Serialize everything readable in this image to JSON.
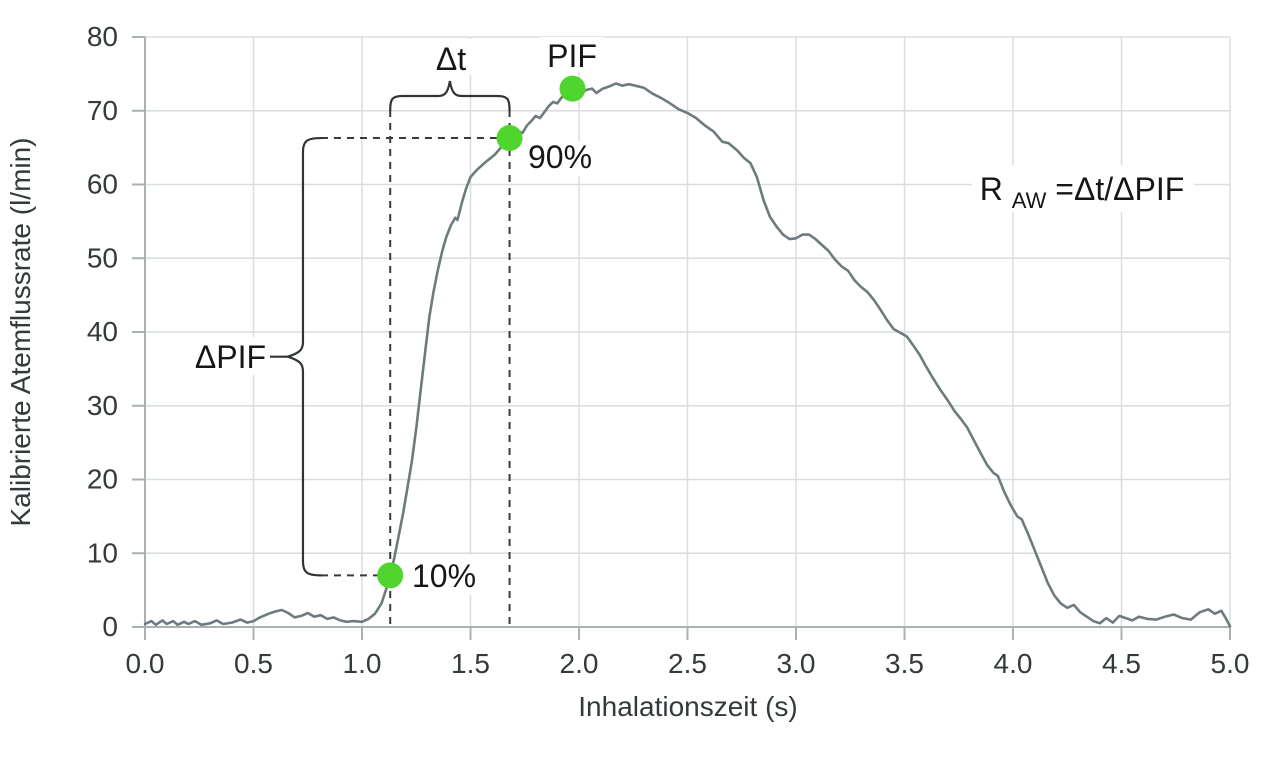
{
  "chart_data": {
    "type": "line",
    "title": "",
    "xlabel": "Inhalationszeit (s)",
    "ylabel": "Kalibrierte Atemflussrate (l/min)",
    "xlim": [
      0,
      5
    ],
    "ylim": [
      0,
      80
    ],
    "grid": true,
    "xticks": [
      "0.0",
      "0.5",
      "1.0",
      "1.5",
      "2.0",
      "2.5",
      "3.0",
      "3.5",
      "4.0",
      "4.5",
      "5.0"
    ],
    "yticks": [
      "0",
      "10",
      "20",
      "30",
      "40",
      "50",
      "60",
      "70",
      "80"
    ],
    "series": [
      {
        "name": "Atemflussrate",
        "points": [
          [
            0.0,
            0.4
          ],
          [
            0.03,
            0.8
          ],
          [
            0.05,
            0.3
          ],
          [
            0.08,
            0.9
          ],
          [
            0.1,
            0.4
          ],
          [
            0.13,
            0.8
          ],
          [
            0.15,
            0.3
          ],
          [
            0.18,
            0.7
          ],
          [
            0.2,
            0.4
          ],
          [
            0.23,
            0.8
          ],
          [
            0.26,
            0.3
          ],
          [
            0.3,
            0.5
          ],
          [
            0.33,
            0.9
          ],
          [
            0.36,
            0.4
          ],
          [
            0.4,
            0.6
          ],
          [
            0.44,
            1.0
          ],
          [
            0.47,
            0.6
          ],
          [
            0.5,
            0.8
          ],
          [
            0.53,
            1.3
          ],
          [
            0.57,
            1.8
          ],
          [
            0.6,
            2.1
          ],
          [
            0.63,
            2.3
          ],
          [
            0.66,
            1.9
          ],
          [
            0.69,
            1.3
          ],
          [
            0.72,
            1.5
          ],
          [
            0.75,
            1.9
          ],
          [
            0.78,
            1.4
          ],
          [
            0.81,
            1.6
          ],
          [
            0.84,
            1.1
          ],
          [
            0.87,
            1.3
          ],
          [
            0.9,
            0.9
          ],
          [
            0.93,
            0.7
          ],
          [
            0.96,
            0.8
          ],
          [
            1.0,
            0.7
          ],
          [
            1.03,
            1.1
          ],
          [
            1.06,
            1.8
          ],
          [
            1.09,
            3.2
          ],
          [
            1.11,
            5.0
          ],
          [
            1.13,
            7.0
          ],
          [
            1.15,
            9.5
          ],
          [
            1.17,
            12.5
          ],
          [
            1.19,
            15.5
          ],
          [
            1.21,
            19.0
          ],
          [
            1.23,
            22.5
          ],
          [
            1.25,
            27.0
          ],
          [
            1.27,
            32.0
          ],
          [
            1.29,
            37.0
          ],
          [
            1.31,
            42.0
          ],
          [
            1.33,
            45.5
          ],
          [
            1.35,
            48.5
          ],
          [
            1.37,
            51.0
          ],
          [
            1.39,
            53.0
          ],
          [
            1.41,
            54.5
          ],
          [
            1.43,
            55.5
          ],
          [
            1.44,
            55.2
          ],
          [
            1.46,
            57.5
          ],
          [
            1.48,
            59.5
          ],
          [
            1.5,
            61.0
          ],
          [
            1.53,
            62.0
          ],
          [
            1.56,
            62.8
          ],
          [
            1.58,
            63.3
          ],
          [
            1.61,
            64.0
          ],
          [
            1.64,
            65.0
          ],
          [
            1.66,
            65.6
          ],
          [
            1.68,
            66.3
          ],
          [
            1.7,
            66.8
          ],
          [
            1.72,
            67.2
          ],
          [
            1.74,
            67.0
          ],
          [
            1.76,
            68.0
          ],
          [
            1.78,
            68.6
          ],
          [
            1.8,
            69.3
          ],
          [
            1.82,
            69.0
          ],
          [
            1.84,
            69.8
          ],
          [
            1.86,
            70.6
          ],
          [
            1.88,
            71.2
          ],
          [
            1.9,
            71.0
          ],
          [
            1.92,
            71.8
          ],
          [
            1.94,
            72.3
          ],
          [
            1.97,
            73.0
          ],
          [
            1.99,
            72.5
          ],
          [
            2.01,
            72.3
          ],
          [
            2.03,
            72.8
          ],
          [
            2.06,
            73.0
          ],
          [
            2.08,
            72.4
          ],
          [
            2.11,
            73.0
          ],
          [
            2.14,
            73.3
          ],
          [
            2.17,
            73.7
          ],
          [
            2.2,
            73.4
          ],
          [
            2.23,
            73.6
          ],
          [
            2.26,
            73.4
          ],
          [
            2.3,
            73.1
          ],
          [
            2.34,
            72.3
          ],
          [
            2.38,
            71.7
          ],
          [
            2.42,
            71.0
          ],
          [
            2.46,
            70.2
          ],
          [
            2.5,
            69.7
          ],
          [
            2.54,
            69.0
          ],
          [
            2.58,
            68.0
          ],
          [
            2.62,
            67.2
          ],
          [
            2.66,
            65.8
          ],
          [
            2.69,
            65.6
          ],
          [
            2.73,
            64.6
          ],
          [
            2.76,
            63.6
          ],
          [
            2.79,
            62.9
          ],
          [
            2.82,
            61.0
          ],
          [
            2.85,
            57.9
          ],
          [
            2.88,
            55.6
          ],
          [
            2.91,
            54.3
          ],
          [
            2.94,
            53.2
          ],
          [
            2.97,
            52.6
          ],
          [
            3.0,
            52.7
          ],
          [
            3.03,
            53.2
          ],
          [
            3.06,
            53.2
          ],
          [
            3.09,
            52.6
          ],
          [
            3.12,
            51.8
          ],
          [
            3.15,
            51.0
          ],
          [
            3.18,
            49.8
          ],
          [
            3.21,
            48.9
          ],
          [
            3.24,
            48.3
          ],
          [
            3.27,
            47.0
          ],
          [
            3.3,
            46.1
          ],
          [
            3.33,
            45.4
          ],
          [
            3.36,
            44.3
          ],
          [
            3.39,
            43.0
          ],
          [
            3.42,
            41.6
          ],
          [
            3.45,
            40.4
          ],
          [
            3.48,
            39.9
          ],
          [
            3.51,
            39.4
          ],
          [
            3.54,
            38.2
          ],
          [
            3.57,
            36.9
          ],
          [
            3.6,
            35.3
          ],
          [
            3.63,
            33.8
          ],
          [
            3.66,
            32.4
          ],
          [
            3.7,
            30.7
          ],
          [
            3.73,
            29.3
          ],
          [
            3.76,
            28.2
          ],
          [
            3.79,
            27.0
          ],
          [
            3.82,
            25.3
          ],
          [
            3.85,
            23.6
          ],
          [
            3.88,
            22.0
          ],
          [
            3.91,
            20.9
          ],
          [
            3.93,
            20.5
          ],
          [
            3.96,
            18.3
          ],
          [
            3.99,
            16.5
          ],
          [
            4.02,
            15.0
          ],
          [
            4.04,
            14.6
          ],
          [
            4.07,
            12.6
          ],
          [
            4.1,
            10.4
          ],
          [
            4.13,
            8.2
          ],
          [
            4.16,
            6.0
          ],
          [
            4.19,
            4.3
          ],
          [
            4.22,
            3.2
          ],
          [
            4.25,
            2.6
          ],
          [
            4.28,
            3.0
          ],
          [
            4.31,
            2.0
          ],
          [
            4.34,
            1.4
          ],
          [
            4.37,
            0.8
          ],
          [
            4.4,
            0.5
          ],
          [
            4.43,
            1.2
          ],
          [
            4.46,
            0.6
          ],
          [
            4.49,
            1.5
          ],
          [
            4.52,
            1.2
          ],
          [
            4.55,
            0.9
          ],
          [
            4.58,
            1.4
          ],
          [
            4.62,
            1.1
          ],
          [
            4.66,
            1.0
          ],
          [
            4.7,
            1.4
          ],
          [
            4.74,
            1.7
          ],
          [
            4.78,
            1.2
          ],
          [
            4.82,
            1.0
          ],
          [
            4.86,
            2.0
          ],
          [
            4.9,
            2.4
          ],
          [
            4.93,
            1.8
          ],
          [
            4.96,
            2.2
          ],
          [
            4.98,
            1.2
          ],
          [
            5.0,
            0.1
          ]
        ]
      }
    ],
    "markers": [
      {
        "label": "10%",
        "x": 1.13,
        "y": 7.0
      },
      {
        "label": "90%",
        "x": 1.68,
        "y": 66.3
      },
      {
        "label": "PIF",
        "x": 1.97,
        "y": 73.0
      }
    ],
    "annotations": {
      "dt_label": "Δt",
      "dpif_label": "ΔPIF",
      "formula": {
        "base": "R",
        "sub": "AW",
        "rest": "=Δt/ΔPIF"
      },
      "dt_span": {
        "x1": 1.13,
        "x2": 1.68,
        "y": 72.0
      },
      "dpif_span": {
        "x": 0.728,
        "y1": 7.0,
        "y2": 66.3
      }
    },
    "legend": false
  },
  "colors": {
    "curve": "#6e7b7e",
    "marker_green": "#50d52e",
    "gridline": "#d8dddd",
    "axis": "#a9b2b2",
    "dashed": "#363b3d",
    "brace": "#2f3436",
    "tick_text": "#333a3c",
    "annotation_text": "#161616",
    "background": "#ffffff"
  }
}
